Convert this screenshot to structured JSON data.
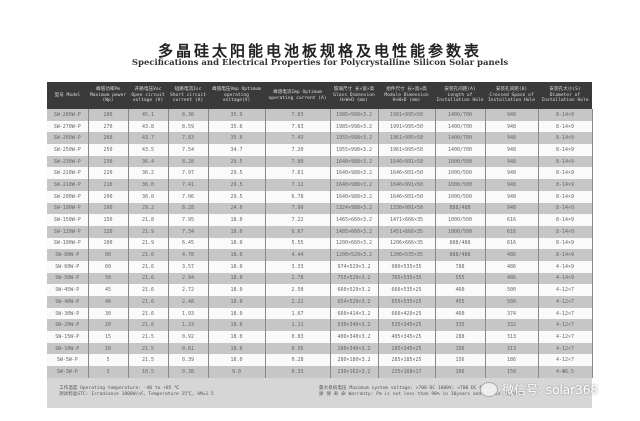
{
  "title": "多晶硅太阳能电池板规格及电性能参数表",
  "subtitle": "Specifications and Electrical Properties for Polycrystalline Silicon Solar panels",
  "headers": [
    "型号 Model",
    "峰值功率Pm Maximum power (Wp)",
    "开路电压Voc Open circuit voltage (V)",
    "短路电流Isc Short circuit current (A)",
    "峰值电压Vmp Optimum operating voltage(V)",
    "峰值电流Imp Optimum operating current (A)",
    "玻璃尺寸 长×宽×高 Glass Dimension H×W×D (mm)",
    "组件尺寸 长×宽×高 Module Dimension H×W×D (mm)",
    "安装孔间距(A) Length of Installation Hole",
    "安装孔间距(B) Crossed Space of Installation Hole",
    "安装孔大小(S) Diameter of Installation Hole"
  ],
  "rows": [
    [
      "SW-280W-P",
      "280",
      "45.1",
      "8.36",
      "35.9",
      "7.83",
      "1985×998×3.2",
      "1991×995×50",
      "1400/700",
      "948",
      "8-14×9"
    ],
    [
      "SW-270W-P",
      "270",
      "43.8",
      "8.59",
      "35.6",
      "7.63",
      "1985×998×3.2",
      "1991×995×50",
      "1400/700",
      "948",
      "8-14×9"
    ],
    [
      "SW-260W-P",
      "260",
      "43.7",
      "7.83",
      "35.0",
      "7.43",
      "1955×998×3.2",
      "1961×995×50",
      "1400/700",
      "948",
      "8-14×9"
    ],
    [
      "SW-250W-P",
      "250",
      "43.5",
      "7.54",
      "34.7",
      "7.20",
      "1955×998×3.2",
      "1961×995×50",
      "1400/700",
      "948",
      "8-14×9"
    ],
    [
      "SW-230W-P",
      "230",
      "36.4",
      "8.28",
      "29.5",
      "7.80",
      "1640×988×3.2",
      "1646×991×50",
      "1000/500",
      "948",
      "8-14×9"
    ],
    [
      "SW-220W-P",
      "220",
      "36.2",
      "7.97",
      "29.5",
      "7.61",
      "1640×988×3.2",
      "1646×991×50",
      "1000/500",
      "948",
      "8-14×9"
    ],
    [
      "SW-210W-P",
      "210",
      "36.0",
      "7.41",
      "29.5",
      "7.12",
      "1640×988×3.2",
      "1646×991×50",
      "1000/500",
      "948",
      "8-14×9"
    ],
    [
      "SW-200W-P",
      "200",
      "36.0",
      "7.06",
      "29.5",
      "6.78",
      "1640×988×3.2",
      "1646×991×50",
      "1000/500",
      "948",
      "8-14×9"
    ],
    [
      "SW-190W-P",
      "190",
      "29.2",
      "8.28",
      "24.0",
      "7.90",
      "1324×988×3.2",
      "1330×991×50",
      "888/488",
      "948",
      "8-14×9"
    ],
    [
      "SW-150W-P",
      "150",
      "21.8",
      "7.95",
      "18.0",
      "7.22",
      "1465×660×3.2",
      "1471×666×35",
      "1000/500",
      "616",
      "8-14×9"
    ],
    [
      "SW-120W-P",
      "120",
      "21.9",
      "7.34",
      "18.0",
      "6.67",
      "1485×660×3.2",
      "1451×666×35",
      "1000/500",
      "616",
      "8-14×9"
    ],
    [
      "SW-100W-P",
      "100",
      "21.9",
      "6.45",
      "18.0",
      "5.55",
      "1200×660×3.2",
      "1206×666×35",
      "888/488",
      "616",
      "8-14×9"
    ],
    [
      "SW-80W-P",
      "80",
      "21.6",
      "4.78",
      "18.0",
      "4.44",
      "1200×529×3.2",
      "1206×535×35",
      "888/488",
      "486",
      "8-14×9"
    ],
    [
      "SW-60W-P",
      "60",
      "21.6",
      "3.57",
      "18.0",
      "3.33",
      "974×529×3.2",
      "980×535×35",
      "788",
      "486",
      "4-14×9"
    ],
    [
      "SW-50W-P",
      "50",
      "21.6",
      "2.94",
      "18.0",
      "2.78",
      "755×529×3.2",
      "765×535×35",
      "555",
      "486",
      "4-14×9"
    ],
    [
      "SW-45W-P",
      "45",
      "21.6",
      "2.72",
      "18.0",
      "2.50",
      "660×529×3.2",
      "666×535×25",
      "460",
      "500",
      "4-12×7"
    ],
    [
      "SW-40W-P",
      "40",
      "21.6",
      "2.48",
      "18.0",
      "2.22",
      "654×529×3.2",
      "655×535×25",
      "455",
      "500",
      "4-12×7"
    ],
    [
      "SW-30W-P",
      "30",
      "21.6",
      "1.93",
      "18.0",
      "1.67",
      "660×414×3.2",
      "666×420×25",
      "460",
      "374",
      "4-12×7"
    ],
    [
      "SW-20W-P",
      "20",
      "21.6",
      "1.23",
      "18.0",
      "1.11",
      "530×340×3.2",
      "535×345×25",
      "335",
      "332",
      "4-12×7"
    ],
    [
      "SW-15W-P",
      "15",
      "21.5",
      "0.92",
      "18.0",
      "0.83",
      "400×340×3.2",
      "405×345×25",
      "288",
      "313",
      "4-12×7"
    ],
    [
      "SW-10W-P",
      "10",
      "21.5",
      "0.61",
      "18.0",
      "0.56",
      "280×340×3.2",
      "285×345×25",
      "156",
      "313",
      "4-12×7"
    ],
    [
      "SW-5W-P",
      "5",
      "21.5",
      "0.39",
      "18.0",
      "0.28",
      "280×180×3.2",
      "285×185×25",
      "156",
      "186",
      "4-12×7"
    ],
    [
      "SW-3W-P",
      "3",
      "10.5",
      "0.38",
      "9.0",
      "0.33",
      "230×162×3.2",
      "235×168×17",
      "166",
      "150",
      "4-Φ6.5"
    ]
  ],
  "footer": {
    "line1": "工作温度 Operating temperature:  -40 to +85 ℃",
    "line2": "测试标准STC: Irradiance 1000W/㎡, Temperature 25℃, AM=1.5",
    "line3": "最大系统电压 Maximum system voltage:  >700 DC 1000V; <700 DC 600V",
    "line4": "质 保 寿 命 Warranty:  Pm is not less than 90% in 10years and 80% in 25years"
  },
  "watermark": "微信号: solar368"
}
